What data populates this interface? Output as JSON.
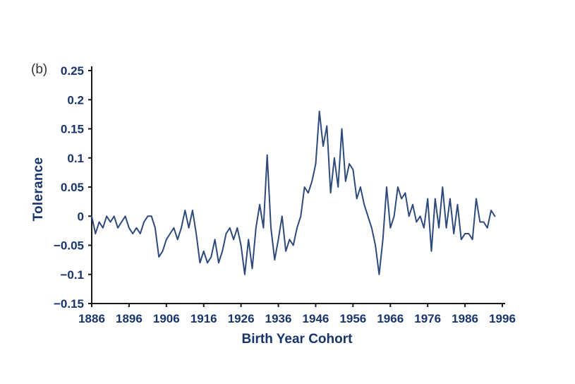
{
  "figure": {
    "panel_label": "(b)",
    "background_color": "#ffffff"
  },
  "chart_data": {
    "type": "line",
    "title": "",
    "xlabel": "Birth Year Cohort",
    "ylabel": "Tolerance",
    "xlim": [
      1886,
      1996
    ],
    "ylim": [
      -0.15,
      0.25
    ],
    "grid": false,
    "legend": "none",
    "line_color": "#2e4a7d",
    "axis_color": "#1a1a1a",
    "axis_text_color": "#17356b",
    "x_ticks": [
      1886,
      1896,
      1906,
      1916,
      1926,
      1936,
      1946,
      1956,
      1966,
      1976,
      1986,
      1996
    ],
    "y_ticks": [
      {
        "value": 0.25,
        "label": "0.25"
      },
      {
        "value": 0.2,
        "label": "0.2"
      },
      {
        "value": 0.15,
        "label": "0.15"
      },
      {
        "value": 0.1,
        "label": "0.1"
      },
      {
        "value": 0.05,
        "label": "0.05"
      },
      {
        "value": 0,
        "label": "0"
      },
      {
        "value": -0.05,
        "label": "−0.05"
      },
      {
        "value": -0.1,
        "label": "−0.1"
      },
      {
        "value": -0.15,
        "label": "−0.15"
      }
    ],
    "series": [
      {
        "name": "Tolerance",
        "x": [
          1886,
          1887,
          1888,
          1889,
          1890,
          1891,
          1892,
          1893,
          1894,
          1895,
          1896,
          1897,
          1898,
          1899,
          1900,
          1901,
          1902,
          1903,
          1904,
          1905,
          1906,
          1907,
          1908,
          1909,
          1910,
          1911,
          1912,
          1913,
          1914,
          1915,
          1916,
          1917,
          1918,
          1919,
          1920,
          1921,
          1922,
          1923,
          1924,
          1925,
          1926,
          1927,
          1928,
          1929,
          1930,
          1931,
          1932,
          1933,
          1934,
          1935,
          1936,
          1937,
          1938,
          1939,
          1940,
          1941,
          1942,
          1943,
          1944,
          1945,
          1946,
          1947,
          1948,
          1949,
          1950,
          1951,
          1952,
          1953,
          1954,
          1955,
          1956,
          1957,
          1958,
          1959,
          1960,
          1961,
          1962,
          1963,
          1964,
          1965,
          1966,
          1967,
          1968,
          1969,
          1970,
          1971,
          1972,
          1973,
          1974,
          1975,
          1976,
          1977,
          1978,
          1979,
          1980,
          1981,
          1982,
          1983,
          1984,
          1985,
          1986,
          1987,
          1988,
          1989,
          1990,
          1991,
          1992,
          1993,
          1994
        ],
        "values": [
          0,
          -0.03,
          -0.01,
          -0.02,
          0,
          -0.01,
          0,
          -0.02,
          -0.01,
          0,
          -0.02,
          -0.03,
          -0.02,
          -0.03,
          -0.01,
          0,
          0,
          -0.02,
          -0.07,
          -0.06,
          -0.04,
          -0.03,
          -0.02,
          -0.04,
          -0.02,
          0.01,
          -0.02,
          0.01,
          -0.03,
          -0.08,
          -0.06,
          -0.08,
          -0.07,
          -0.04,
          -0.08,
          -0.06,
          -0.03,
          -0.02,
          -0.04,
          -0.02,
          -0.05,
          -0.1,
          -0.04,
          -0.09,
          -0.02,
          0.02,
          -0.02,
          0.105,
          -0.02,
          -0.075,
          -0.04,
          0,
          -0.06,
          -0.04,
          -0.05,
          -0.02,
          0,
          0.05,
          0.04,
          0.06,
          0.09,
          0.18,
          0.12,
          0.155,
          0.04,
          0.1,
          0.05,
          0.15,
          0.06,
          0.09,
          0.08,
          0.03,
          0.05,
          0.02,
          0,
          -0.02,
          -0.05,
          -0.1,
          -0.04,
          0.05,
          -0.02,
          0,
          0.05,
          0.03,
          0.04,
          0,
          0.02,
          -0.01,
          0,
          -0.02,
          0.03,
          -0.06,
          0.03,
          -0.02,
          0.05,
          -0.02,
          0.03,
          -0.03,
          0.02,
          -0.04,
          -0.03,
          -0.03,
          -0.04,
          0.03,
          -0.01,
          -0.01,
          -0.02,
          0.01,
          0
        ]
      }
    ]
  }
}
